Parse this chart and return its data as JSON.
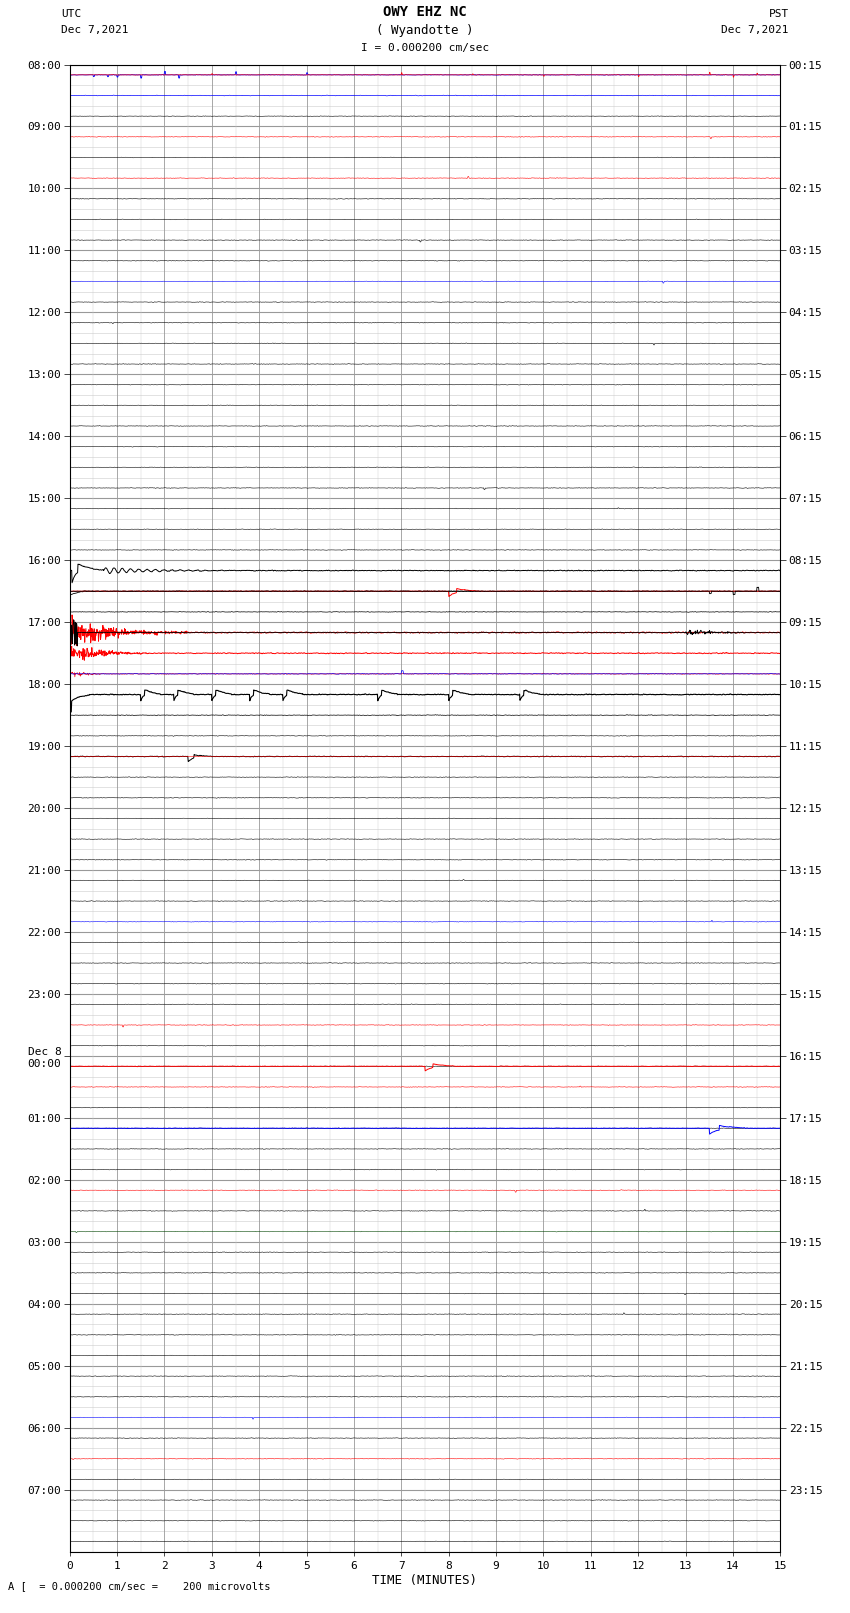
{
  "title_main": "OWY EHZ NC",
  "title_sub": "( Wyandotte )",
  "scale_label": "I = 0.000200 cm/sec",
  "footer_label": "A [  = 0.000200 cm/sec =    200 microvolts",
  "utc_label": "UTC",
  "utc_date": "Dec 7,2021",
  "pst_label": "PST",
  "pst_date": "Dec 7,2021",
  "xlabel": "TIME (MINUTES)",
  "left_times_utc": [
    "08:00",
    "",
    "",
    "09:00",
    "",
    "",
    "10:00",
    "",
    "",
    "11:00",
    "",
    "",
    "12:00",
    "",
    "",
    "13:00",
    "",
    "",
    "14:00",
    "",
    "",
    "15:00",
    "",
    "",
    "16:00",
    "",
    "",
    "17:00",
    "",
    "",
    "18:00",
    "",
    "",
    "19:00",
    "",
    "",
    "20:00",
    "",
    "",
    "21:00",
    "",
    "",
    "22:00",
    "",
    "",
    "23:00",
    "",
    "",
    "Dec 8\n00:00",
    "",
    "",
    "01:00",
    "",
    "",
    "02:00",
    "",
    "",
    "03:00",
    "",
    "",
    "04:00",
    "",
    "",
    "05:00",
    "",
    "",
    "06:00",
    "",
    "",
    "07:00",
    "",
    ""
  ],
  "right_times_pst": [
    "00:15",
    "",
    "",
    "01:15",
    "",
    "",
    "02:15",
    "",
    "",
    "03:15",
    "",
    "",
    "04:15",
    "",
    "",
    "05:15",
    "",
    "",
    "06:15",
    "",
    "",
    "07:15",
    "",
    "",
    "08:15",
    "",
    "",
    "09:15",
    "",
    "",
    "10:15",
    "",
    "",
    "11:15",
    "",
    "",
    "12:15",
    "",
    "",
    "13:15",
    "",
    "",
    "14:15",
    "",
    "",
    "15:15",
    "",
    "",
    "16:15",
    "",
    "",
    "17:15",
    "",
    "",
    "18:15",
    "",
    "",
    "19:15",
    "",
    "",
    "20:15",
    "",
    "",
    "21:15",
    "",
    "",
    "22:15",
    "",
    "",
    "23:15",
    "",
    ""
  ],
  "num_rows": 72,
  "minutes_per_row": 15,
  "bg_color": "#ffffff",
  "grid_major_color": "#999999",
  "grid_minor_color": "#cccccc",
  "figsize": [
    8.5,
    16.13
  ]
}
